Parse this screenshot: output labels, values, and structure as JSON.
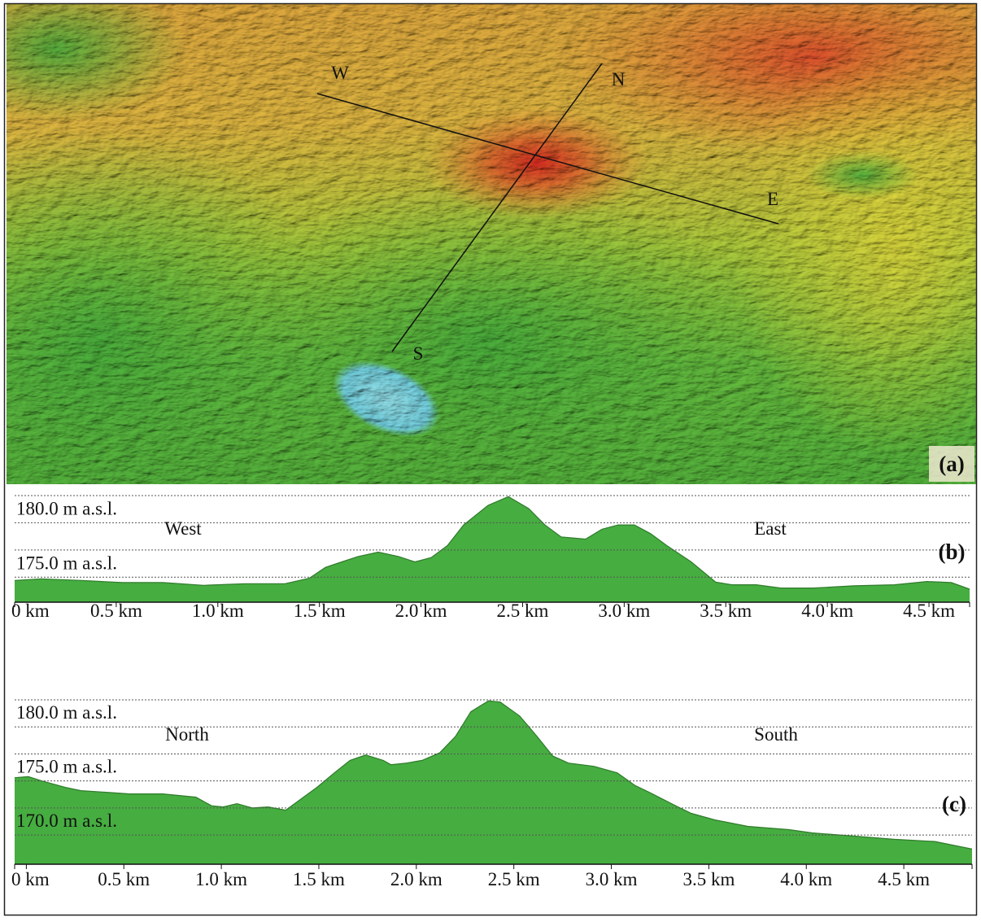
{
  "map": {
    "labels": [
      "W",
      "N",
      "E",
      "S"
    ],
    "panel_label": "(a)"
  },
  "chart_data": [
    {
      "type": "area",
      "left_label": "West",
      "right_label": "East",
      "panel_label": "(b)",
      "color": "#46ad40",
      "grid": true,
      "x": [
        0,
        0.13,
        0.33,
        0.53,
        0.73,
        0.93,
        1.13,
        1.33,
        1.45,
        1.53,
        1.61,
        1.69,
        1.79,
        1.89,
        1.97,
        2.05,
        2.13,
        2.21,
        2.33,
        2.43,
        2.53,
        2.61,
        2.69,
        2.81,
        2.89,
        2.97,
        3.05,
        3.13,
        3.21,
        3.33,
        3.45,
        3.53,
        3.65,
        3.77,
        3.93,
        4.13,
        4.33,
        4.49,
        4.61,
        4.7
      ],
      "values": [
        174.7,
        174.85,
        174.7,
        174.5,
        174.5,
        174.25,
        174.4,
        174.4,
        174.9,
        175.9,
        176.4,
        176.9,
        177.3,
        176.9,
        176.4,
        176.8,
        177.9,
        179.8,
        181.6,
        182.4,
        181.3,
        179.8,
        178.7,
        178.5,
        179.4,
        179.8,
        179.8,
        179.0,
        177.9,
        176.4,
        174.55,
        174.3,
        174.3,
        174.0,
        174.0,
        174.2,
        174.3,
        174.6,
        174.5,
        173.9
      ],
      "xlim": [
        0,
        4.7
      ],
      "xticks": [
        {
          "value": 0,
          "label": "0 km"
        },
        {
          "value": 0.5,
          "label": "0.5 km"
        },
        {
          "value": 1.0,
          "label": "1.0 km"
        },
        {
          "value": 1.5,
          "label": "1.5 km"
        },
        {
          "value": 2.0,
          "label": "2.0 km"
        },
        {
          "value": 2.5,
          "label": "2.5 km"
        },
        {
          "value": 3.0,
          "label": "3.0 km"
        },
        {
          "value": 3.5,
          "label": "3.5 km"
        },
        {
          "value": 4.0,
          "label": "4.0 km"
        },
        {
          "value": 4.5,
          "label": "4.5 km"
        }
      ],
      "ylim": [
        172.7,
        182.5
      ],
      "yticks": [
        {
          "value": 175,
          "label": "175.0 m a.s.l."
        },
        {
          "value": 177.5,
          "label": null
        },
        {
          "value": 180,
          "label": "180.0 m a.s.l."
        },
        {
          "value": 182.5,
          "label": null
        }
      ]
    },
    {
      "type": "area",
      "left_label": "North",
      "right_label": "South",
      "panel_label": "(c)",
      "color": "#46ad40",
      "grid": true,
      "x": [
        -0.06,
        0.01,
        0.08,
        0.2,
        0.28,
        0.41,
        0.53,
        0.7,
        0.87,
        0.95,
        1.01,
        1.08,
        1.16,
        1.24,
        1.33,
        1.41,
        1.49,
        1.58,
        1.66,
        1.74,
        1.83,
        1.87,
        1.95,
        2.03,
        2.12,
        2.2,
        2.28,
        2.37,
        2.43,
        2.53,
        2.62,
        2.7,
        2.78,
        2.91,
        3.03,
        3.12,
        3.2,
        3.33,
        3.41,
        3.53,
        3.7,
        3.91,
        4.03,
        4.24,
        4.45,
        4.66,
        4.85
      ],
      "values": [
        175.3,
        175.4,
        175.0,
        174.4,
        174.1,
        173.95,
        173.8,
        173.8,
        173.5,
        172.7,
        172.6,
        172.9,
        172.5,
        172.6,
        172.3,
        173.35,
        174.4,
        175.75,
        176.9,
        177.4,
        176.9,
        176.5,
        176.65,
        176.9,
        177.6,
        179.1,
        181.4,
        182.4,
        182.3,
        181.0,
        179.1,
        177.3,
        176.65,
        176.35,
        175.75,
        174.6,
        173.9,
        172.7,
        172.0,
        171.4,
        170.8,
        170.5,
        170.2,
        169.9,
        169.6,
        169.4,
        168.7
      ],
      "xlim": [
        -0.06,
        4.85
      ],
      "xticks": [
        {
          "value": 0,
          "label": "0 km"
        },
        {
          "value": 0.5,
          "label": "0.5 km"
        },
        {
          "value": 1.0,
          "label": "1.0 km"
        },
        {
          "value": 1.5,
          "label": "1.5 km"
        },
        {
          "value": 2.0,
          "label": "2.0 km"
        },
        {
          "value": 2.5,
          "label": "2.5 km"
        },
        {
          "value": 3.0,
          "label": "3.0 km"
        },
        {
          "value": 3.5,
          "label": "3.5 km"
        },
        {
          "value": 4.0,
          "label": "4.0 km"
        },
        {
          "value": 4.5,
          "label": "4.5 km"
        }
      ],
      "ylim": [
        167.3,
        182.5
      ],
      "yticks": [
        {
          "value": 170,
          "label": "170.0 m a.s.l."
        },
        {
          "value": 172.5,
          "label": null
        },
        {
          "value": 175,
          "label": "175.0 m a.s.l."
        },
        {
          "value": 177.5,
          "label": null
        },
        {
          "value": 180,
          "label": "180.0 m a.s.l."
        },
        {
          "value": 182.5,
          "label": null
        }
      ]
    }
  ]
}
